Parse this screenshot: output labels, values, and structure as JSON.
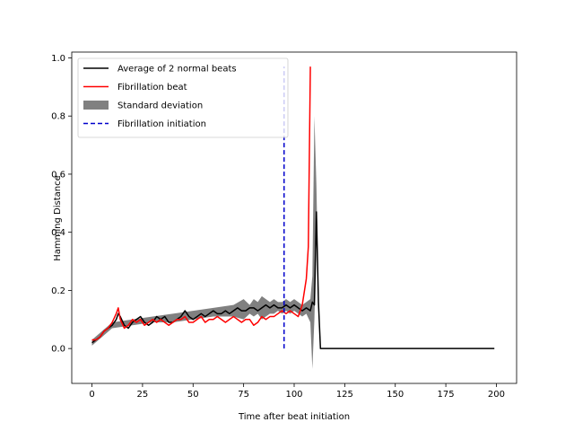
{
  "chart_data": {
    "type": "line",
    "title": "",
    "xlabel": "Time after beat initiation",
    "ylabel": "Hamming Distance",
    "xlim": [
      -10,
      210
    ],
    "ylim": [
      -0.12,
      1.02
    ],
    "xticks": [
      0,
      25,
      50,
      75,
      100,
      125,
      150,
      175,
      200
    ],
    "yticks": [
      0.0,
      0.2,
      0.4,
      0.6,
      0.8,
      1.0
    ],
    "xtick_labels": [
      "0",
      "25",
      "50",
      "75",
      "100",
      "125",
      "150",
      "175",
      "200"
    ],
    "ytick_labels": [
      "0.0",
      "0.2",
      "0.4",
      "0.6",
      "0.8",
      "1.0"
    ],
    "grid": false,
    "legend_position": "top-left",
    "legend": [
      {
        "label": "Average of 2 normal beats",
        "style": "line",
        "color": "#000000"
      },
      {
        "label": "Fibrillation beat",
        "style": "line",
        "color": "#ff0000"
      },
      {
        "label": "Standard deviation",
        "style": "patch",
        "color": "#808080"
      },
      {
        "label": "Fibrillation initiation",
        "style": "dashed",
        "color": "#0000cc"
      }
    ],
    "series": [
      {
        "name": "Average of 2 normal beats",
        "color": "#000000",
        "x": [
          0,
          2,
          4,
          6,
          8,
          10,
          12,
          13,
          14,
          16,
          18,
          20,
          22,
          24,
          26,
          28,
          30,
          32,
          34,
          36,
          38,
          40,
          42,
          44,
          46,
          48,
          50,
          52,
          54,
          56,
          58,
          60,
          62,
          64,
          66,
          68,
          70,
          72,
          74,
          76,
          78,
          80,
          82,
          84,
          86,
          88,
          90,
          92,
          94,
          96,
          98,
          100,
          102,
          104,
          106,
          108,
          109,
          110,
          111,
          112,
          113,
          115,
          120,
          130,
          140,
          150,
          160,
          170,
          180,
          190,
          199
        ],
        "y": [
          0.02,
          0.03,
          0.04,
          0.06,
          0.07,
          0.08,
          0.1,
          0.12,
          0.11,
          0.08,
          0.07,
          0.09,
          0.1,
          0.11,
          0.09,
          0.08,
          0.09,
          0.11,
          0.1,
          0.11,
          0.09,
          0.09,
          0.1,
          0.11,
          0.13,
          0.11,
          0.1,
          0.11,
          0.12,
          0.11,
          0.12,
          0.13,
          0.12,
          0.12,
          0.13,
          0.12,
          0.13,
          0.14,
          0.13,
          0.13,
          0.14,
          0.14,
          0.13,
          0.14,
          0.15,
          0.14,
          0.15,
          0.14,
          0.14,
          0.15,
          0.14,
          0.15,
          0.14,
          0.13,
          0.14,
          0.13,
          0.16,
          0.15,
          0.47,
          0.16,
          0.0,
          0.0,
          0.0,
          0.0,
          0.0,
          0.0,
          0.0,
          0.0,
          0.0,
          0.0,
          0.0
        ]
      },
      {
        "name": "Fibrillation beat",
        "color": "#ff0000",
        "x": [
          0,
          2,
          4,
          6,
          8,
          10,
          12,
          13,
          14,
          16,
          18,
          20,
          22,
          24,
          26,
          28,
          30,
          32,
          34,
          36,
          38,
          40,
          42,
          44,
          46,
          48,
          50,
          52,
          54,
          56,
          58,
          60,
          62,
          64,
          66,
          68,
          70,
          72,
          74,
          76,
          78,
          80,
          82,
          84,
          86,
          88,
          90,
          92,
          94,
          96,
          98,
          100,
          102,
          104,
          106,
          107,
          108
        ],
        "y": [
          0.03,
          0.03,
          0.04,
          0.06,
          0.07,
          0.09,
          0.12,
          0.14,
          0.1,
          0.07,
          0.08,
          0.1,
          0.09,
          0.1,
          0.08,
          0.09,
          0.1,
          0.09,
          0.1,
          0.09,
          0.08,
          0.09,
          0.1,
          0.1,
          0.11,
          0.09,
          0.09,
          0.1,
          0.11,
          0.09,
          0.1,
          0.1,
          0.11,
          0.1,
          0.09,
          0.1,
          0.11,
          0.1,
          0.09,
          0.1,
          0.1,
          0.08,
          0.09,
          0.11,
          0.1,
          0.11,
          0.11,
          0.12,
          0.13,
          0.12,
          0.13,
          0.12,
          0.11,
          0.15,
          0.24,
          0.35,
          0.97
        ]
      }
    ],
    "std_band": {
      "name": "Standard deviation",
      "color": "#808080",
      "x": [
        0,
        10,
        20,
        30,
        40,
        50,
        60,
        70,
        75,
        78,
        80,
        82,
        84,
        86,
        88,
        90,
        92,
        94,
        96,
        98,
        100,
        102,
        104,
        106,
        108,
        109,
        110,
        111,
        112,
        113
      ],
      "upper": [
        0.03,
        0.09,
        0.1,
        0.11,
        0.12,
        0.13,
        0.14,
        0.15,
        0.17,
        0.15,
        0.17,
        0.16,
        0.18,
        0.17,
        0.16,
        0.17,
        0.16,
        0.16,
        0.17,
        0.16,
        0.17,
        0.16,
        0.15,
        0.16,
        0.17,
        0.25,
        0.8,
        0.56,
        0.2,
        0.0
      ],
      "lower": [
        0.01,
        0.07,
        0.08,
        0.09,
        0.09,
        0.1,
        0.11,
        0.11,
        0.1,
        0.12,
        0.11,
        0.12,
        0.1,
        0.11,
        0.12,
        0.12,
        0.13,
        0.12,
        0.13,
        0.12,
        0.13,
        0.12,
        0.11,
        0.12,
        0.09,
        -0.07,
        0.1,
        0.38,
        0.12,
        0.0
      ]
    },
    "vline": {
      "name": "Fibrillation initiation",
      "x": 95,
      "y0": 0.0,
      "y1": 0.97,
      "color": "#0000cc"
    }
  }
}
